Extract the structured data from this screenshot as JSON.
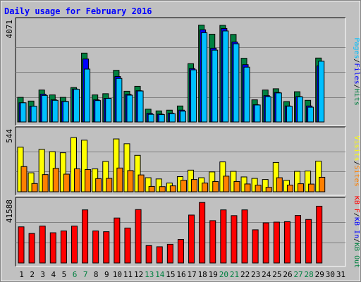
{
  "title": "Daily usage for February 2016",
  "colors": {
    "background": "#c0c0c0",
    "panel": "#c0c0c0",
    "frame_dark": "#808080",
    "frame_light": "#ffffff",
    "title": "#0000ff",
    "hits": "#008040",
    "files": "#0000ff",
    "pages": "#00c0ff",
    "visits": "#ffff00",
    "sites": "#ff8000",
    "kbin": "#ff0000",
    "weekend_label": "#008040",
    "weekday_label": "#000000"
  },
  "chart_data": {
    "type": "bar",
    "categories": [
      "1",
      "2",
      "3",
      "4",
      "5",
      "6",
      "7",
      "8",
      "9",
      "10",
      "11",
      "12",
      "13",
      "14",
      "15",
      "16",
      "17",
      "18",
      "19",
      "20",
      "21",
      "22",
      "23",
      "24",
      "25",
      "26",
      "27",
      "28",
      "29",
      "30",
      "31"
    ],
    "weekend_days": [
      "6",
      "7",
      "13",
      "14",
      "20",
      "21",
      "27",
      "28"
    ],
    "panels": [
      {
        "name": "hits-files-pages",
        "max_label": "4071",
        "ylim": [
          0,
          4071
        ],
        "legend": [
          "Pages",
          "Files",
          "Hits"
        ],
        "series": [
          {
            "name": "Hits",
            "values": [
              1000,
              850,
              1300,
              1100,
              1000,
              1400,
              2800,
              1100,
              1150,
              2100,
              1250,
              1450,
              520,
              450,
              480,
              650,
              2370,
              3940,
              3570,
              3930,
              3560,
              2590,
              900,
              1300,
              1350,
              830,
              1230,
              880,
              2600,
              0,
              0
            ]
          },
          {
            "name": "Files",
            "values": [
              780,
              640,
              1130,
              900,
              840,
              1340,
              2560,
              900,
              960,
              1850,
              1120,
              1270,
              350,
              320,
              360,
              480,
              2170,
              3750,
              3000,
              3800,
              3250,
              2330,
              700,
              1070,
              1200,
              650,
              1030,
              650,
              2280,
              0,
              0
            ]
          },
          {
            "name": "Pages",
            "values": [
              780,
              640,
              1080,
              880,
              830,
              1330,
              2150,
              870,
              960,
              1770,
              1090,
              1260,
              310,
              300,
              340,
              440,
              2120,
              3630,
              2920,
              3700,
              3180,
              2230,
              690,
              1030,
              1180,
              640,
              1020,
              600,
              2470,
              0,
              0
            ]
          }
        ]
      },
      {
        "name": "visits-sites",
        "max_label": "544",
        "ylim": [
          0,
          544
        ],
        "legend": [
          "Visits",
          "Sites"
        ],
        "series": [
          {
            "name": "Visits",
            "values": [
              400,
              170,
              380,
              360,
              350,
              486,
              463,
              205,
              272,
              474,
              431,
              327,
              126,
              115,
              78,
              136,
              194,
              126,
              178,
              268,
              183,
              133,
              120,
              110,
              263,
              103,
              183,
              186,
              275,
              0,
              0
            ]
          },
          {
            "name": "Sites",
            "values": [
              226,
              74,
              154,
              210,
              158,
              206,
              199,
              118,
              120,
              213,
              190,
              151,
              48,
              46,
              53,
              103,
              110,
              78,
              92,
              140,
              92,
              70,
              59,
              40,
              126,
              60,
              72,
              69,
              130,
              0,
              0
            ]
          }
        ]
      },
      {
        "name": "kbin",
        "max_label": "41588",
        "ylim": [
          0,
          41588
        ],
        "legend": [
          "KB F",
          "KB In",
          "KB Out"
        ],
        "series": [
          {
            "name": "KB In",
            "values": [
              24500,
              20000,
              25000,
              20500,
              21700,
              25000,
              36000,
              21700,
              21200,
              30500,
              23700,
              36200,
              11800,
              11000,
              12700,
              16000,
              32500,
              41000,
              28700,
              36000,
              32100,
              36000,
              22500,
              27200,
              27700,
              28000,
              32200,
              29500,
              38500,
              0,
              0
            ]
          }
        ]
      }
    ]
  }
}
